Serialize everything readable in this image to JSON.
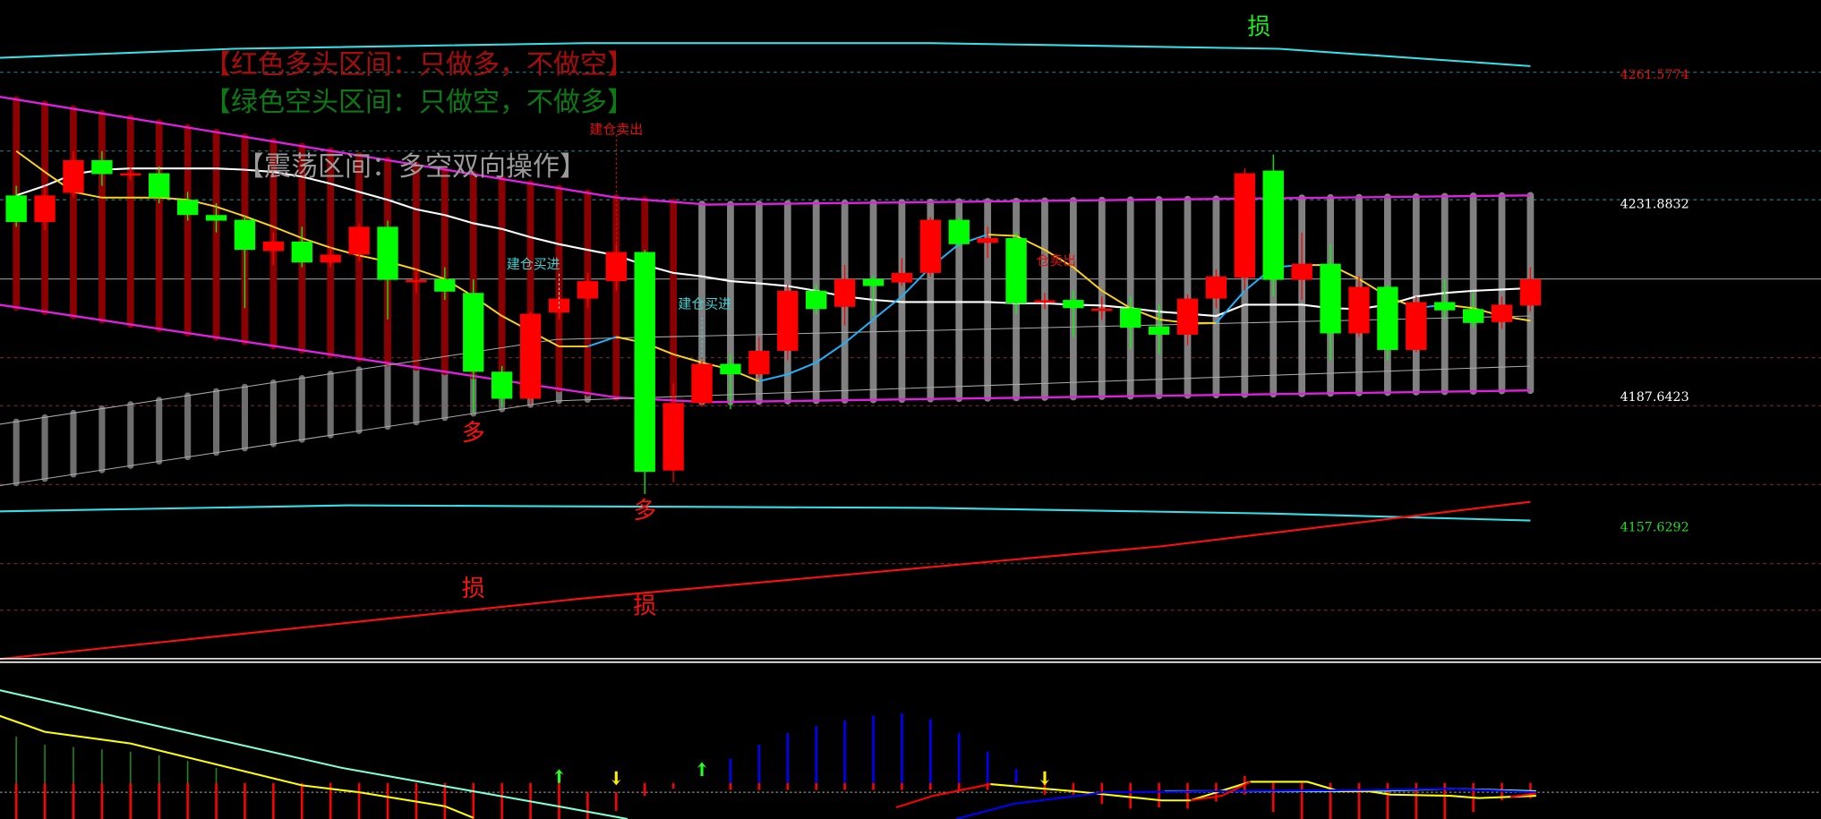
{
  "legend": {
    "bull_zone": "【红色多头区间：只做多，不做空】",
    "bear_zone": "【绿色空头区间：只做空，不做多】",
    "range_zone": "【震荡区间：多空双向操作】"
  },
  "colors": {
    "background": "#000000",
    "bull_candle": "#ff0000",
    "bear_candle": "#00ff00",
    "bull_zone_bar": "#8b0000",
    "range_zone_bar": "#808080",
    "lower_zone_bar": "#6e6e6e",
    "band_cyan": "#33e0e8",
    "band_magenta": "#e020e0",
    "stop_line": "#ff1010",
    "ma_white": "#ffffff",
    "ma_yellow": "#ffd21a",
    "ma_rising": "#1eb4ff",
    "grid_teal": "#2e8a8a",
    "grid_red": "#8a3030",
    "grid_gray": "#9a9a9a",
    "ind_cyan": "#7fffd4",
    "ind_yellow": "#ffff00",
    "ind_blue": "#0000ff",
    "ind_red": "#ff0000",
    "ind_green": "#1a8a1a"
  },
  "chart_data": {
    "type": "candlestick",
    "ylim": [
      4127.3,
      4278.9
    ],
    "candle_count": 54,
    "price_labels": [
      {
        "value": "4261.5774",
        "price": 4261.5774,
        "color": "#e01010"
      },
      {
        "value": "4231.8832",
        "price": 4231.8832,
        "color": "#ffffff"
      },
      {
        "value": "4187.6423",
        "price": 4187.6423,
        "color": "#ffffff"
      },
      {
        "value": "4157.6292",
        "price": 4157.6292,
        "color": "#22dd22"
      }
    ],
    "gridlines": [
      {
        "price": 4262.3,
        "style": "teal"
      },
      {
        "price": 4244.2,
        "style": "teal"
      },
      {
        "price": 4233.0,
        "style": "teal"
      },
      {
        "price": 4214.8,
        "style": "gray"
      },
      {
        "price": 4196.7,
        "style": "red"
      },
      {
        "price": 4185.7,
        "style": "red"
      },
      {
        "price": 4167.6,
        "style": "red"
      },
      {
        "price": 4149.4,
        "style": "red"
      },
      {
        "price": 4138.7,
        "style": "red"
      }
    ],
    "candles_ohlc": [
      [
        4234.0,
        4236.2,
        4226.8,
        4227.9
      ],
      [
        4227.9,
        4236.2,
        4226.0,
        4234.0
      ],
      [
        4234.6,
        4244.2,
        4233.5,
        4242.1
      ],
      [
        4242.1,
        4244.2,
        4236.2,
        4238.9
      ],
      [
        4238.9,
        4240.7,
        4237.5,
        4239.1
      ],
      [
        4239.1,
        4240.7,
        4232.2,
        4233.5
      ],
      [
        4233.0,
        4234.8,
        4228.2,
        4229.5
      ],
      [
        4229.5,
        4232.2,
        4225.5,
        4228.2
      ],
      [
        4228.4,
        4229.5,
        4208.1,
        4221.5
      ],
      [
        4221.2,
        4225.5,
        4218.0,
        4223.4
      ],
      [
        4223.4,
        4226.8,
        4217.5,
        4218.6
      ],
      [
        4218.6,
        4222.0,
        4217.5,
        4220.4
      ],
      [
        4220.4,
        4227.6,
        4218.8,
        4226.8
      ],
      [
        4226.8,
        4228.2,
        4205.5,
        4214.6
      ],
      [
        4214.3,
        4217.0,
        4211.6,
        4214.6
      ],
      [
        4214.8,
        4217.5,
        4210.0,
        4211.9
      ],
      [
        4211.6,
        4214.8,
        4184.1,
        4193.5
      ],
      [
        4193.5,
        4194.8,
        4185.4,
        4187.3
      ],
      [
        4187.3,
        4207.3,
        4186.0,
        4206.8
      ],
      [
        4207.1,
        4212.1,
        4205.5,
        4210.3
      ],
      [
        4210.3,
        4216.2,
        4208.1,
        4214.3
      ],
      [
        4214.3,
        4222.8,
        4212.1,
        4221.0
      ],
      [
        4221.0,
        4221.5,
        4165.4,
        4170.5
      ],
      [
        4170.8,
        4190.8,
        4168.1,
        4186.3
      ],
      [
        4186.3,
        4196.7,
        4185.4,
        4195.3
      ],
      [
        4195.3,
        4197.5,
        4184.9,
        4192.9
      ],
      [
        4192.9,
        4201.5,
        4192.1,
        4198.3
      ],
      [
        4198.3,
        4213.5,
        4196.1,
        4212.1
      ],
      [
        4212.1,
        4213.5,
        4206.8,
        4207.9
      ],
      [
        4208.4,
        4218.0,
        4204.1,
        4214.8
      ],
      [
        4214.8,
        4215.6,
        4206.3,
        4213.2
      ],
      [
        4214.0,
        4219.6,
        4213.2,
        4216.2
      ],
      [
        4216.2,
        4229.0,
        4215.4,
        4228.4
      ],
      [
        4228.4,
        4229.0,
        4222.3,
        4222.8
      ],
      [
        4223.1,
        4226.8,
        4219.6,
        4224.2
      ],
      [
        4224.2,
        4225.5,
        4206.8,
        4209.2
      ],
      [
        4209.6,
        4211.6,
        4207.9,
        4209.9
      ],
      [
        4210.0,
        4212.1,
        4201.5,
        4208.1
      ],
      [
        4207.7,
        4210.8,
        4205.5,
        4208.0
      ],
      [
        4208.1,
        4210.8,
        4198.8,
        4203.6
      ],
      [
        4203.9,
        4208.9,
        4197.5,
        4202.0
      ],
      [
        4202.0,
        4211.3,
        4199.6,
        4210.3
      ],
      [
        4210.3,
        4217.0,
        4208.1,
        4215.4
      ],
      [
        4215.1,
        4240.2,
        4212.1,
        4239.1
      ],
      [
        4239.7,
        4243.4,
        4210.8,
        4214.6
      ],
      [
        4214.6,
        4225.5,
        4210.0,
        4218.3
      ],
      [
        4218.3,
        4222.8,
        4196.1,
        4202.3
      ],
      [
        4202.3,
        4215.4,
        4201.5,
        4213.0
      ],
      [
        4213.0,
        4213.5,
        4196.1,
        4198.5
      ],
      [
        4198.5,
        4210.8,
        4198.0,
        4209.5
      ],
      [
        4209.5,
        4214.8,
        4205.5,
        4207.6
      ],
      [
        4207.9,
        4211.6,
        4203.6,
        4204.7
      ],
      [
        4204.9,
        4210.8,
        4203.3,
        4208.9
      ],
      [
        4208.7,
        4217.5,
        4207.3,
        4214.8
      ]
    ],
    "ma_white": [
      4234.0,
      4236.2,
      4238.9,
      4239.9,
      4240.2,
      4240.2,
      4240.2,
      4240.2,
      4239.9,
      4239.4,
      4238.3,
      4236.7,
      4234.8,
      4233.0,
      4230.8,
      4229.5,
      4227.6,
      4226.3,
      4224.4,
      4222.8,
      4221.5,
      4220.2,
      4218.0,
      4216.2,
      4215.4,
      4214.3,
      4213.8,
      4213.2,
      4212.1,
      4210.8,
      4210.0,
      4209.5,
      4209.5,
      4209.5,
      4209.5,
      4209.2,
      4209.2,
      4208.9,
      4208.7,
      4208.1,
      4207.3,
      4206.8,
      4206.3,
      4208.9,
      4208.9,
      4208.9,
      4208.1,
      4207.9,
      4208.9,
      4210.8,
      4211.6,
      4212.1,
      4212.4,
      4212.7
    ],
    "ma_yellow": [
      4244.2,
      4239.4,
      4234.8,
      4233.5,
      4233.5,
      4233.5,
      4233.0,
      4231.4,
      4229.2,
      4226.8,
      4224.2,
      4222.0,
      4220.2,
      4218.8,
      4217.0,
      4214.8,
      4210.8,
      4206.3,
      4202.8,
      4199.3,
      4199.3,
      4201.5,
      4200.1,
      4197.5,
      4195.6,
      4194.0,
      4191.3,
      4192.9,
      4195.6,
      4200.1,
      4205.5,
      4210.8,
      4217.5,
      4222.8,
      4225.0,
      4224.7,
      4221.5,
      4217.5,
      4212.1,
      4208.1,
      4205.5,
      4204.7,
      4204.7,
      4212.1,
      4217.5,
      4218.0,
      4218.0,
      4214.8,
      4210.8,
      4208.1,
      4208.9,
      4208.1,
      4206.3,
      4205.2
    ],
    "bands": {
      "cyan_upper": [
        [
          0.4,
          4265.6
        ],
        [
          8.6,
          4267.7
        ],
        [
          21,
          4269.0
        ],
        [
          33,
          4269.0
        ],
        [
          45.2,
          4267.7
        ],
        [
          54,
          4263.7
        ]
      ],
      "cyan_lower": [
        [
          0.4,
          4161.4
        ],
        [
          12.6,
          4162.8
        ],
        [
          33,
          4162.2
        ],
        [
          45,
          4160.9
        ],
        [
          54,
          4159.3
        ]
      ],
      "magenta_upper": [
        [
          0.4,
          4256.7
        ],
        [
          22,
          4233.5
        ],
        [
          25.2,
          4231.9
        ],
        [
          54,
          4234.0
        ]
      ],
      "magenta_lower": [
        [
          0.4,
          4208.9
        ],
        [
          22,
          4187.6
        ],
        [
          25.2,
          4186.5
        ],
        [
          54,
          4189.2
        ]
      ],
      "red_stop": [
        [
          0.4,
          4127.5
        ],
        [
          20.8,
          4141.4
        ],
        [
          41.1,
          4153.4
        ],
        [
          54,
          4163.6
        ]
      ],
      "gray_lower_top": [
        [
          0.4,
          4181.4
        ],
        [
          19.9,
          4200.9
        ],
        [
          54,
          4206.3
        ]
      ],
      "gray_lower_bottom": [
        [
          0.4,
          4167.3
        ],
        [
          19.9,
          4186.8
        ],
        [
          54,
          4194.8
        ]
      ]
    },
    "zone_bars": {
      "bull_zone_candles": [
        1,
        24
      ],
      "range_zone_candles": [
        25,
        54
      ],
      "lower_zone_candles": [
        1,
        21
      ]
    },
    "annotations": [
      {
        "text": "多",
        "candle": 17,
        "price": 4179.3,
        "color": "#ff1010",
        "size": "large"
      },
      {
        "text": "多",
        "candle": 23,
        "price": 4161.4,
        "color": "#ff1010",
        "size": "large"
      },
      {
        "text": "损",
        "candle": 17,
        "price": 4143.5,
        "color": "#ff1010",
        "size": "large"
      },
      {
        "text": "损",
        "candle": 23,
        "price": 4139.5,
        "color": "#ff1010",
        "size": "large"
      },
      {
        "text": "损",
        "candle": 44.5,
        "price": 4272.5,
        "color": "#22ee22",
        "size": "large"
      },
      {
        "text": "建仓卖出",
        "candle": 22,
        "price": 4249.0,
        "color": "#e01010",
        "size": "small"
      },
      {
        "text": "建仓买进",
        "candle": 19.1,
        "price": 4218.0,
        "color": "#40d0d0",
        "size": "small"
      },
      {
        "text": "建仓买进",
        "candle": 25.1,
        "price": 4208.9,
        "color": "#40d0d0",
        "size": "small"
      },
      {
        "text": "仓卖出",
        "candle": 37.4,
        "price": 4218.8,
        "color": "#e01010",
        "size": "small"
      }
    ],
    "signal_lines": [
      {
        "candle": 22,
        "from": 4248.0,
        "to": 4221.0,
        "color": "#e01010"
      },
      {
        "candle": 20,
        "from": 4216.0,
        "to": 4208.0,
        "color": "#dddddd"
      },
      {
        "candle": 25,
        "from": 4206.0,
        "to": 4196.0,
        "color": "#40d0d0"
      }
    ],
    "indicator": {
      "ylim": [
        -23,
        110
      ],
      "green_bars": [
        48,
        41,
        39,
        37,
        35,
        32,
        27,
        21
      ],
      "red_bars": [
        [
          8,
          -23
        ],
        [
          8,
          -23
        ],
        [
          8,
          -23
        ],
        [
          8,
          -23
        ],
        [
          8,
          -23
        ],
        [
          8,
          -23
        ],
        [
          8,
          -23
        ],
        [
          8,
          -23
        ],
        [
          8,
          -23
        ],
        [
          8,
          -23
        ],
        [
          8,
          -23
        ],
        [
          8,
          -23
        ],
        [
          8,
          -23
        ],
        [
          8,
          -23
        ],
        [
          8,
          -23
        ],
        [
          8,
          -23
        ],
        [
          8,
          -23
        ],
        [
          8,
          -23
        ],
        [
          8,
          -23
        ],
        [
          8,
          -23
        ],
        [
          0,
          -23
        ],
        [
          0,
          -16
        ],
        [
          8,
          -3
        ],
        [
          8,
          3
        ],
        [
          0,
          0
        ],
        [
          8,
          2
        ],
        [
          8,
          2
        ],
        [
          8,
          2
        ],
        [
          8,
          2
        ],
        [
          8,
          2
        ],
        [
          8,
          2
        ],
        [
          8,
          2
        ],
        [
          8,
          2
        ],
        [
          8,
          2
        ],
        [
          8,
          2
        ],
        [
          14,
          8
        ],
        [
          14,
          -2
        ],
        [
          8,
          -2
        ],
        [
          8,
          -10
        ],
        [
          8,
          -14
        ],
        [
          8,
          -13
        ],
        [
          8,
          -14
        ],
        [
          8,
          -8
        ],
        [
          14,
          -2
        ],
        [
          8,
          -17
        ],
        [
          8,
          -23
        ],
        [
          8,
          -23
        ],
        [
          8,
          -23
        ],
        [
          8,
          -23
        ],
        [
          8,
          -23
        ],
        [
          8,
          -23
        ],
        [
          8,
          -17
        ],
        [
          8,
          -7
        ],
        [
          8,
          -5
        ]
      ],
      "blue_bars_start_candle": 26,
      "blue_bars": [
        29,
        41,
        51,
        57,
        62,
        66,
        68,
        63,
        51,
        35,
        20
      ],
      "arrows": [
        {
          "candle": 20,
          "dir": "up",
          "value": 14,
          "color": "#22ff22"
        },
        {
          "candle": 22,
          "dir": "down",
          "value": 12,
          "color": "#ffee00"
        },
        {
          "candle": 25,
          "dir": "up",
          "value": 20,
          "color": "#22ff22"
        },
        {
          "candle": 37,
          "dir": "down",
          "value": 12,
          "color": "#ffee00"
        }
      ],
      "lines": [
        {
          "color": "#7fffd4",
          "points": [
            [
              0.4,
              88
            ],
            [
              12.4,
              21
            ],
            [
              20.4,
              -14
            ],
            [
              22.4,
              -23
            ]
          ]
        },
        {
          "color": "#7fffd4",
          "points": [
            [
              41.2,
              1
            ],
            [
              48.3,
              1
            ],
            [
              51.2,
              3
            ],
            [
              54.2,
              1
            ]
          ]
        },
        {
          "color": "#ffff00",
          "points": [
            [
              0.4,
              66
            ],
            [
              2,
              52
            ],
            [
              5,
              42
            ],
            [
              8,
              24
            ],
            [
              11,
              6
            ],
            [
              13,
              0
            ],
            [
              16,
              -12
            ],
            [
              17,
              -22
            ]
          ]
        },
        {
          "color": "#ffff00",
          "points": [
            [
              35.1,
              7
            ],
            [
              38,
              1
            ],
            [
              41.1,
              -7
            ],
            [
              42.1,
              -7
            ],
            [
              44.2,
              9
            ],
            [
              46.2,
              9
            ],
            [
              47.3,
              1
            ],
            [
              48.3,
              1
            ],
            [
              49.1,
              -2
            ],
            [
              51.2,
              -3
            ],
            [
              52.2,
              -5
            ],
            [
              54.2,
              -3
            ]
          ]
        },
        {
          "color": "#0000ff",
          "points": [
            [
              33.9,
              -23
            ],
            [
              35.9,
              -10
            ],
            [
              39.1,
              0
            ],
            [
              48.3,
              2
            ],
            [
              51.2,
              3
            ],
            [
              54.2,
              0
            ]
          ]
        },
        {
          "color": "#ff0000",
          "points": [
            [
              31.8,
              -13
            ],
            [
              33.1,
              -3
            ],
            [
              35.1,
              7
            ]
          ]
        },
        {
          "color": "#ff0000",
          "points": [
            [
              42.1,
              -7
            ],
            [
              43.2,
              -3
            ],
            [
              44.2,
              9
            ]
          ]
        },
        {
          "color": "#ff0000",
          "points": [
            [
              53.3,
              -4
            ],
            [
              54.2,
              -1
            ]
          ]
        }
      ]
    }
  }
}
